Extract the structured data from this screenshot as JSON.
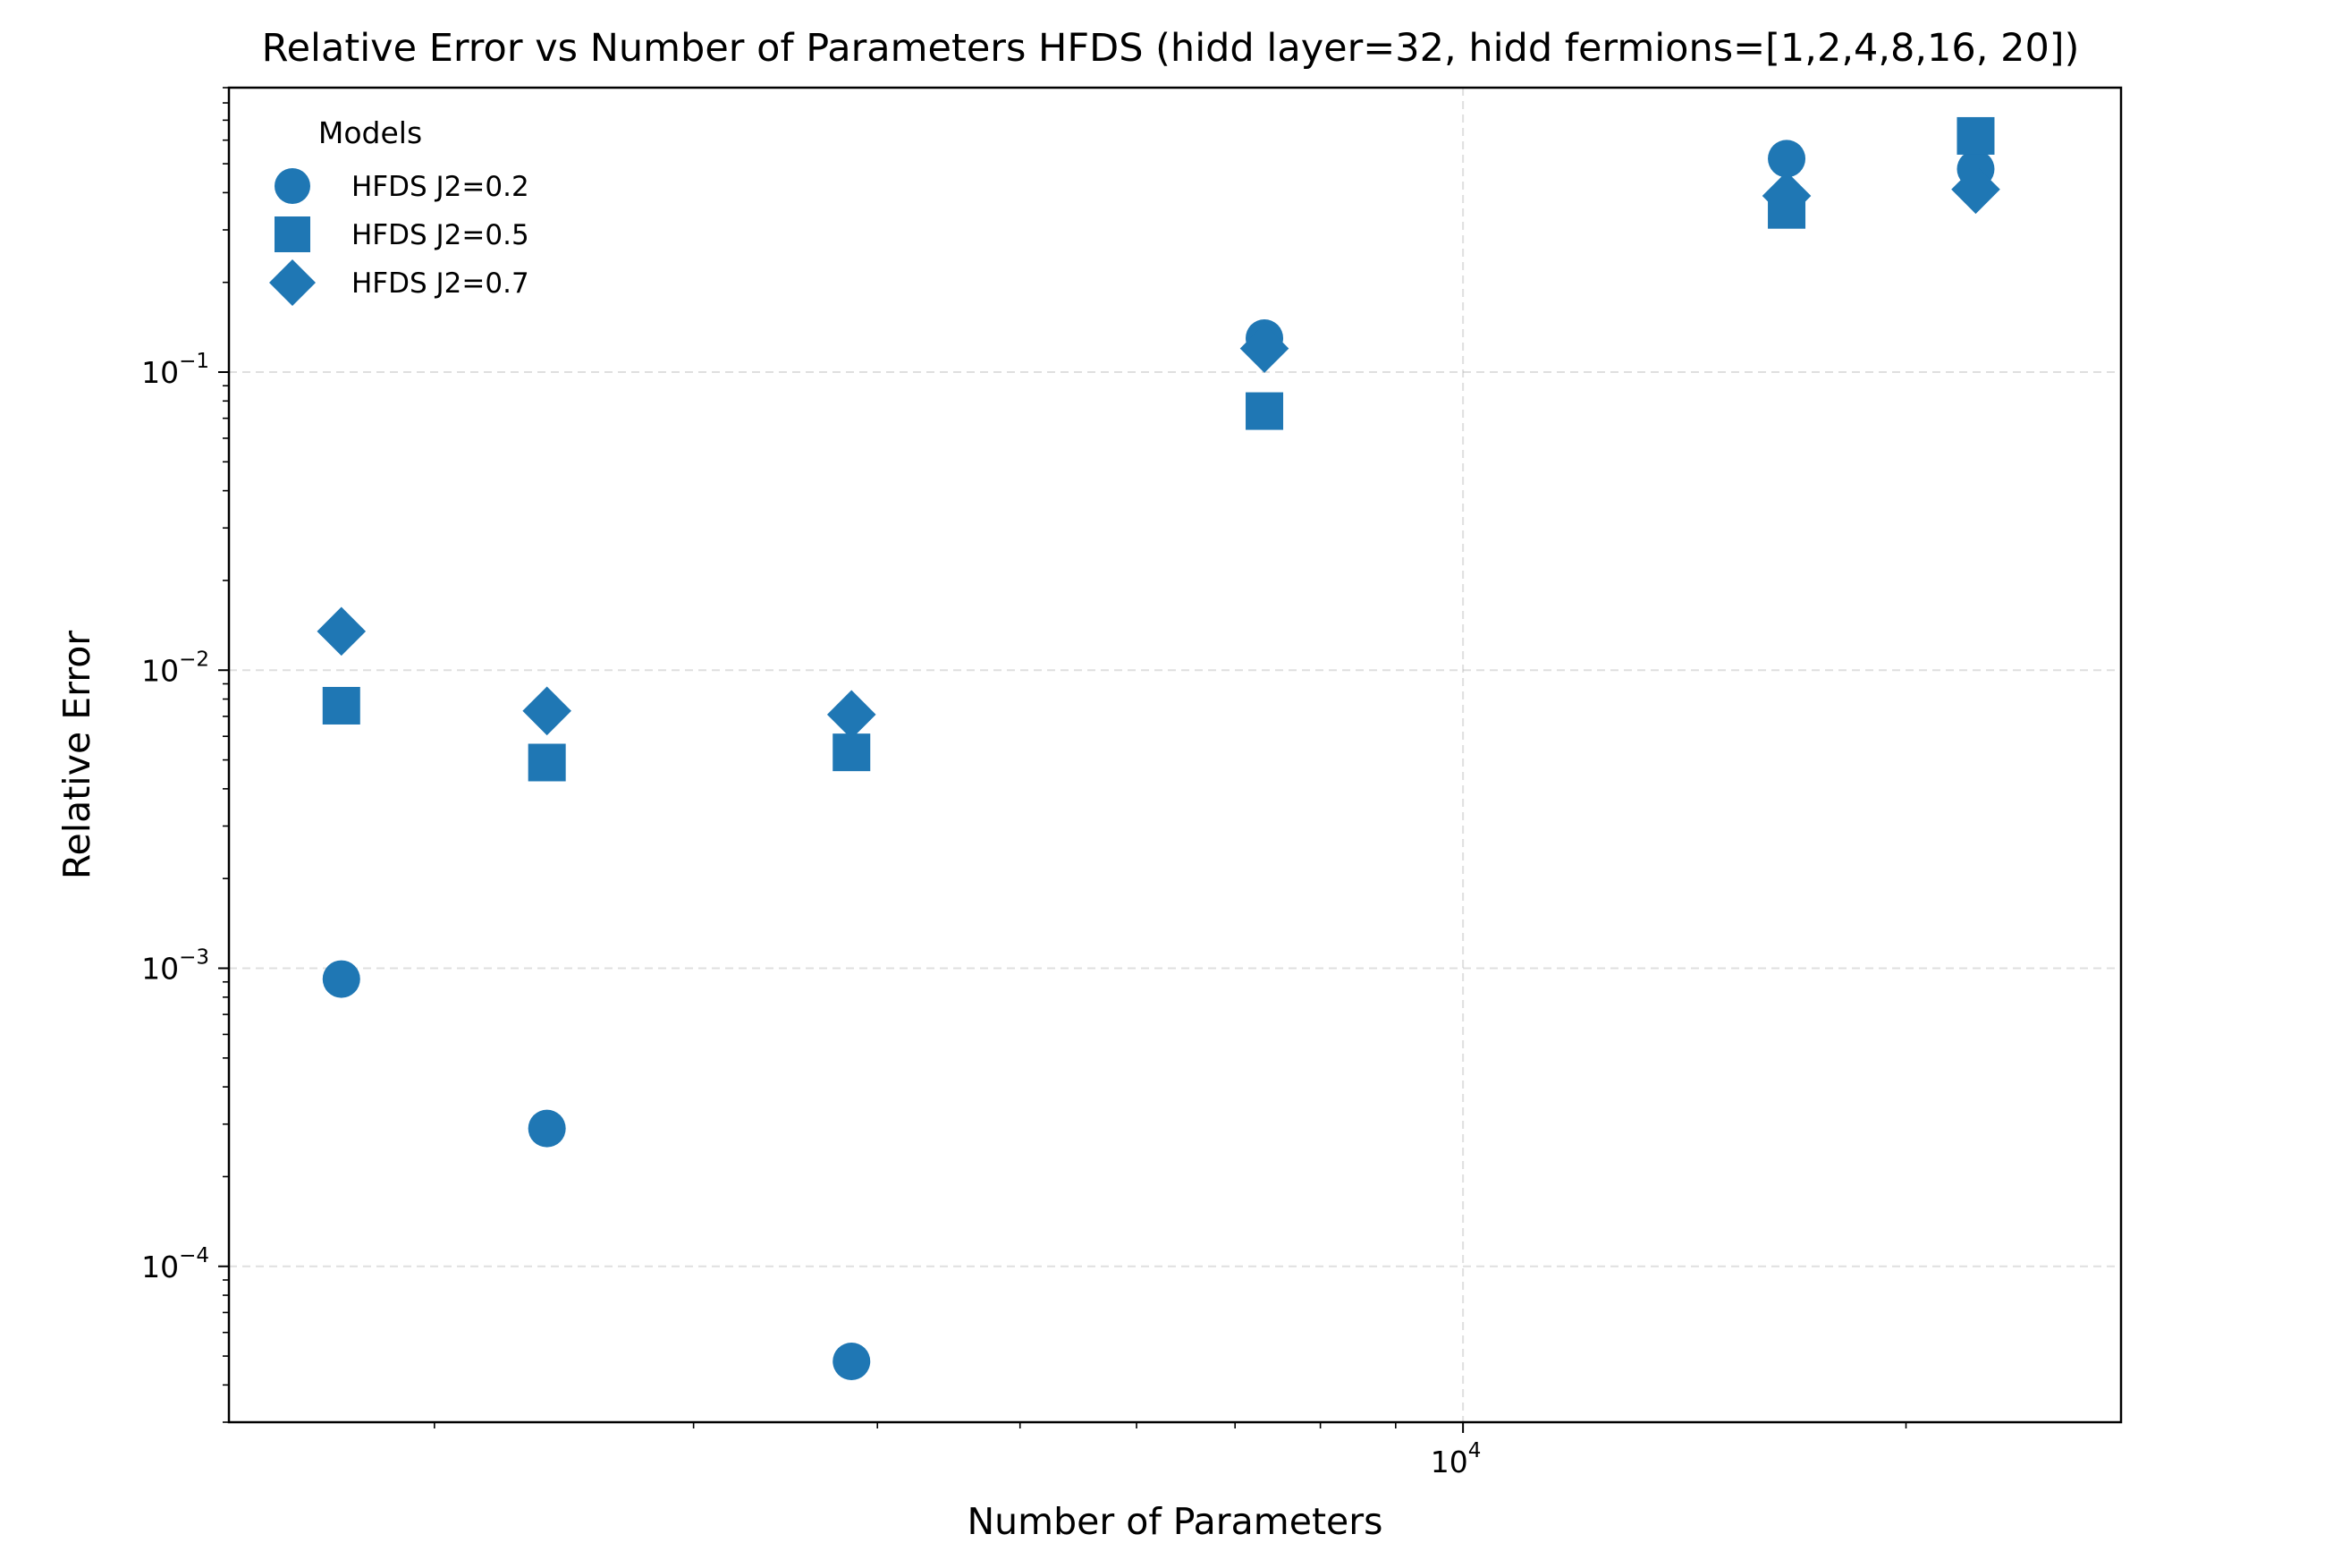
{
  "chart_data": {
    "type": "scatter",
    "title": "Relative Error vs Number of Parameters HFDS (hidd layer=32, hidd fermions=[1,2,4,8,16, 20])",
    "xlabel": "Number of Parameters",
    "ylabel": "Relative Error",
    "x_scale": "log",
    "y_scale": "log",
    "xlim": [
      1450,
      28000
    ],
    "ylim": [
      3e-05,
      0.9
    ],
    "x_major_ticks": [
      {
        "value": 10000,
        "base": "10",
        "exp": "4"
      }
    ],
    "x_minor_ticks": [
      2000,
      3000,
      4000,
      5000,
      6000,
      7000,
      8000,
      9000,
      20000
    ],
    "y_major_ticks": [
      {
        "value": 0.0001,
        "base": "10",
        "exp": "−4"
      },
      {
        "value": 0.001,
        "base": "10",
        "exp": "−3"
      },
      {
        "value": 0.01,
        "base": "10",
        "exp": "−2"
      },
      {
        "value": 0.1,
        "base": "10",
        "exp": "−1"
      }
    ],
    "grid": true,
    "legend_title": "Models",
    "legend_position": "top-left",
    "color": "#1f77b4",
    "series": [
      {
        "name": "HFDS J2=0.2",
        "marker": "circle",
        "x": [
          1729,
          2385,
          3841,
          7329,
          16593,
          22305
        ],
        "y": [
          0.00092,
          0.00029,
          4.8e-05,
          0.13,
          0.52,
          0.48
        ]
      },
      {
        "name": "HFDS J2=0.5",
        "marker": "square",
        "x": [
          1729,
          2385,
          3841,
          7329,
          16593,
          22305
        ],
        "y": [
          0.0076,
          0.0049,
          0.0053,
          0.074,
          0.35,
          0.62
        ]
      },
      {
        "name": "HFDS J2=0.7",
        "marker": "diamond",
        "x": [
          1729,
          2385,
          3841,
          7329,
          16593,
          22305
        ],
        "y": [
          0.0135,
          0.0073,
          0.0071,
          0.12,
          0.39,
          0.41
        ]
      }
    ]
  }
}
